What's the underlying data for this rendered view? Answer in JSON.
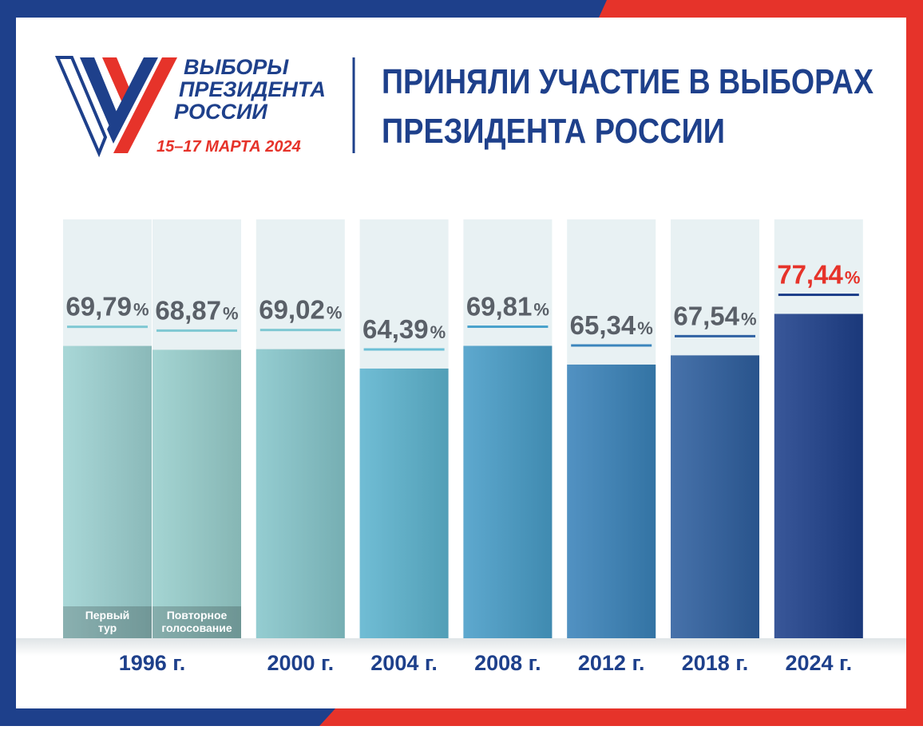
{
  "header": {
    "logo_lines": [
      "ВЫБОРЫ",
      "ПРЕЗИДЕНТА",
      "РОССИИ"
    ],
    "logo_date": "15–17 МАРТА 2024",
    "title_lines": [
      "ПРИНЯЛИ УЧАСТИЕ В ВЫБОРАХ",
      "ПРЕЗИДЕНТА РОССИИ"
    ]
  },
  "chart_data": {
    "type": "bar",
    "unit": "%",
    "ylim": [
      0,
      100
    ],
    "groups": [
      {
        "label": "1996 г.",
        "bars": [
          {
            "name": [
              "Первый",
              "тур"
            ],
            "value": 69.79,
            "value_label": "69,79",
            "color": "#9dd2d2",
            "label_color": "#5a6068",
            "rule_color": "#7fc8d3"
          },
          {
            "name": [
              "Повторное",
              "голосование"
            ],
            "value": 68.87,
            "value_label": "68,87",
            "color": "#98cfcd",
            "label_color": "#5a6068",
            "rule_color": "#7fc8d3"
          }
        ]
      },
      {
        "label": "2000 г.",
        "bars": [
          {
            "value": 69.02,
            "value_label": "69,02",
            "color": "#86c6cb",
            "label_color": "#5a6068",
            "rule_color": "#7fc8d3"
          }
        ]
      },
      {
        "label": "2004 г.",
        "bars": [
          {
            "value": 64.39,
            "value_label": "64,39",
            "color": "#5db4cf",
            "label_color": "#5a6068",
            "rule_color": "#6cbfd6"
          }
        ]
      },
      {
        "label": "2008 г.",
        "bars": [
          {
            "value": 69.81,
            "value_label": "69,81",
            "color": "#489dc8",
            "label_color": "#5a6068",
            "rule_color": "#4aa2cc"
          }
        ]
      },
      {
        "label": "2012 г.",
        "bars": [
          {
            "value": 65.34,
            "value_label": "65,34",
            "color": "#3a83ba",
            "label_color": "#5a6068",
            "rule_color": "#3b85bd"
          }
        ]
      },
      {
        "label": "2018 г.",
        "bars": [
          {
            "value": 67.54,
            "value_label": "67,54",
            "color": "#2e5f9f",
            "label_color": "#5a6068",
            "rule_color": "#2f62a3"
          }
        ]
      },
      {
        "label": "2024 г.",
        "bars": [
          {
            "value": 77.44,
            "value_label": "77,44",
            "color": "#1e408b",
            "label_color": "#e6332a",
            "rule_color": "#1e408b"
          }
        ]
      }
    ]
  }
}
